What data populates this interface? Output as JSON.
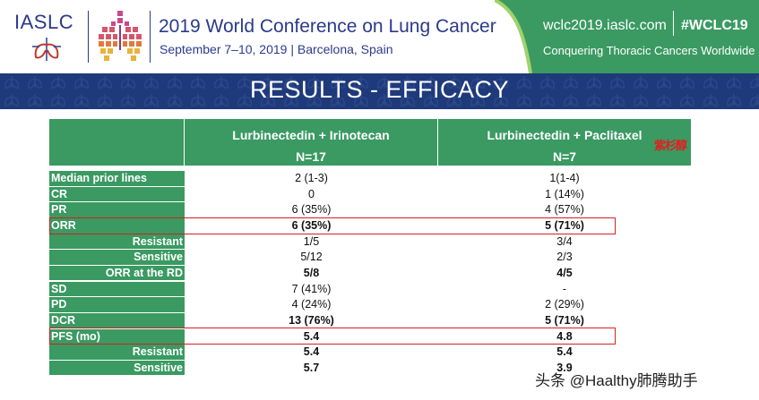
{
  "header": {
    "logo_text": "IASLC",
    "conference_title": "2019 World Conference on Lung Cancer",
    "conference_date": "September 7–10, 2019 | Barcelona, Spain",
    "site_url": "wclc2019.iaslc.com",
    "hashtag": "#WCLC19",
    "tagline": "Conquering Thoracic Cancers Worldwide"
  },
  "slide": {
    "title": "RESULTS - EFFICACY"
  },
  "table": {
    "columns": [
      {
        "name": "Lurbinectedin + Irinotecan",
        "n": "N=17"
      },
      {
        "name": "Lurbinectedin + Paclitaxel",
        "n": "N=7"
      }
    ],
    "rows": [
      {
        "label": "Median prior lines",
        "sub": false,
        "bold": false,
        "c1": "2 (1-3)",
        "c2": "1(1-4)"
      },
      {
        "label": "CR",
        "sub": false,
        "bold": false,
        "c1": "0",
        "c2": "1 (14%)"
      },
      {
        "label": "PR",
        "sub": false,
        "bold": false,
        "c1": "6 (35%)",
        "c2": "4 (57%)"
      },
      {
        "label": "ORR",
        "sub": false,
        "bold": true,
        "c1": "6 (35%)",
        "c2": "5 (71%)"
      },
      {
        "label": "Resistant",
        "sub": true,
        "bold": false,
        "c1": "1/5",
        "c2": "3/4"
      },
      {
        "label": "Sensitive",
        "sub": true,
        "bold": false,
        "c1": "5/12",
        "c2": "2/3"
      },
      {
        "label": "ORR at the RD",
        "sub": true,
        "bold": true,
        "c1": "5/8",
        "c2": "4/5"
      },
      {
        "label": "SD",
        "sub": false,
        "bold": false,
        "c1": "7 (41%)",
        "c2": "-"
      },
      {
        "label": "PD",
        "sub": false,
        "bold": false,
        "c1": "4 (24%)",
        "c2": "2 (29%)"
      },
      {
        "label": "DCR",
        "sub": false,
        "bold": true,
        "c1": "13 (76%)",
        "c2": "5 (71%)"
      },
      {
        "label": "PFS (mo)",
        "sub": false,
        "bold": true,
        "c1": "5.4",
        "c2": "4.8"
      },
      {
        "label": "Resistant",
        "sub": true,
        "bold": true,
        "c1": "5.4",
        "c2": "5.4"
      },
      {
        "label": "Sensitive",
        "sub": true,
        "bold": true,
        "c1": "5.7",
        "c2": "3.9"
      }
    ]
  },
  "annotations": {
    "stamp_text": "紫杉醇",
    "watermark": "头条 @Haalthy肺腾助手"
  },
  "colors": {
    "brand_navy": "#2b3a8c",
    "title_bar": "#1f3a7a",
    "table_green": "#3a9a62",
    "highlight_red": "#d42020"
  }
}
